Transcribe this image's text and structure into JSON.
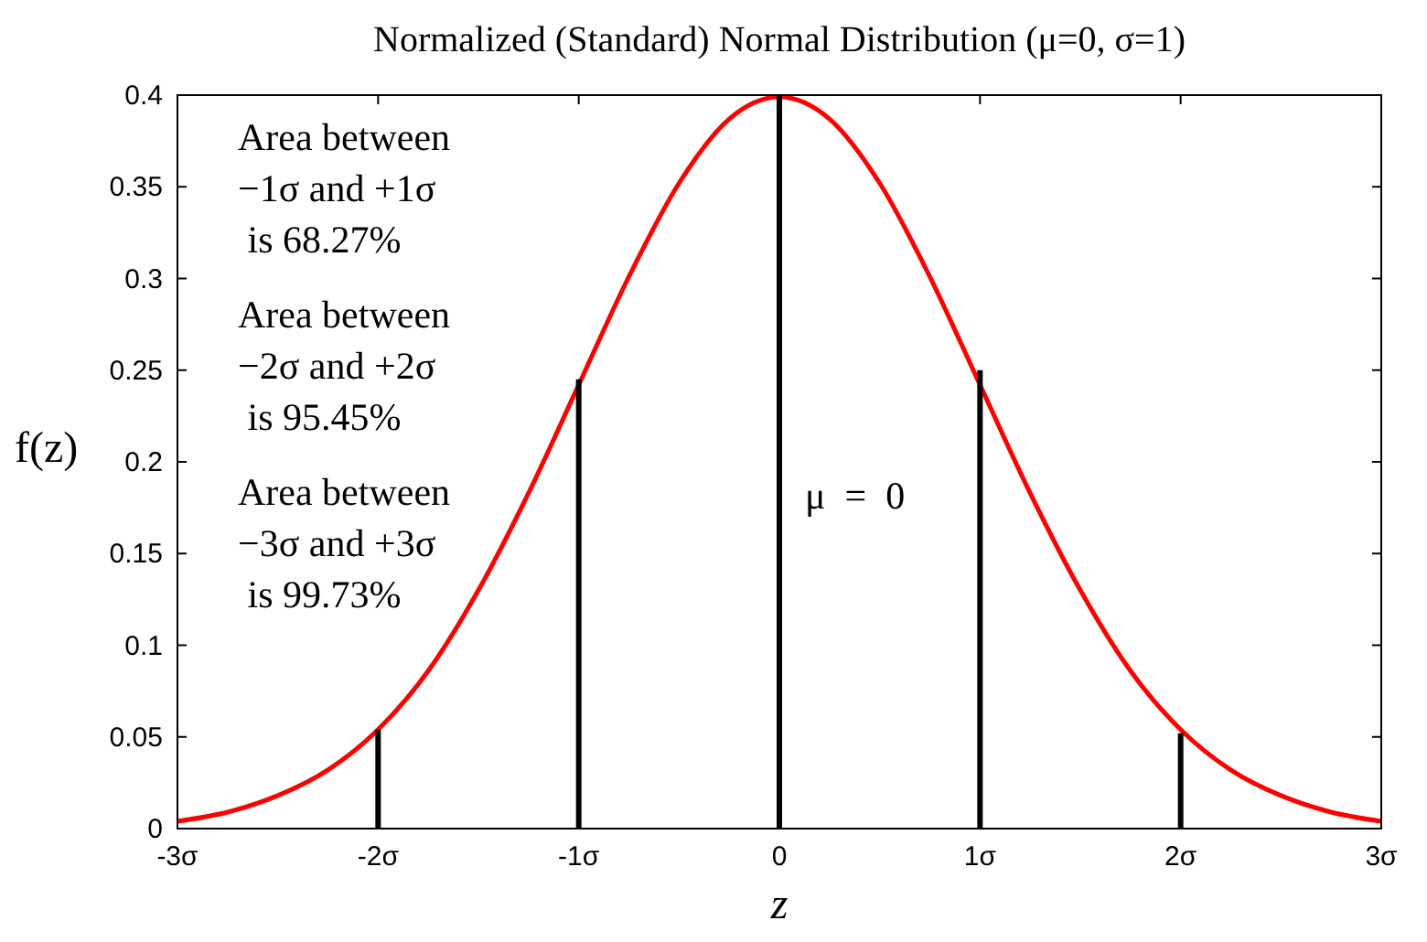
{
  "chart_data": {
    "type": "line",
    "title": "Normalized (Standard) Normal Distribution (μ=0, σ=1)",
    "xlabel": "z",
    "ylabel": "f(z)",
    "series": [
      {
        "color": "#ff0000",
        "x": [
          -3,
          -2.75,
          -2.5,
          -2.25,
          -2,
          -1.75,
          -1.5,
          -1.25,
          -1,
          -0.75,
          -0.5,
          -0.25,
          0,
          0.25,
          0.5,
          0.75,
          1,
          1.25,
          1.5,
          1.75,
          2,
          2.25,
          2.5,
          2.75,
          3
        ],
        "values": [
          0.004,
          0.009,
          0.018,
          0.032,
          0.054,
          0.086,
          0.13,
          0.183,
          0.242,
          0.301,
          0.352,
          0.387,
          0.399,
          0.387,
          0.352,
          0.301,
          0.242,
          0.183,
          0.13,
          0.086,
          0.054,
          0.032,
          0.018,
          0.009,
          0.004
        ]
      },
      {
        "type": "bar",
        "color": "#000000",
        "x": [
          -2,
          -1,
          0,
          1,
          2
        ],
        "values": [
          0.054,
          0.245,
          0.4,
          0.25,
          0.052
        ]
      }
    ],
    "xlim": [
      -3,
      3
    ],
    "xticks": [
      {
        "value": -3,
        "label": "-3σ"
      },
      {
        "value": -2,
        "label": "-2σ"
      },
      {
        "value": -1,
        "label": "-1σ"
      },
      {
        "value": 0,
        "label": "0"
      },
      {
        "value": 1,
        "label": "1σ"
      },
      {
        "value": 2,
        "label": "2σ"
      },
      {
        "value": 3,
        "label": "3σ"
      }
    ],
    "ylim": [
      0,
      0.4
    ],
    "yticks": [
      0,
      0.05,
      0.1,
      0.15,
      0.2,
      0.25,
      0.3,
      0.35,
      0.4
    ],
    "grid": false,
    "annotations": [
      "Area between\n−1σ and +1σ\n is 68.27%",
      "Area between\n−2σ and +2σ\n is 95.45%",
      "Area between\n−3σ and +3σ\n is 99.73%",
      "μ  =  0"
    ]
  }
}
